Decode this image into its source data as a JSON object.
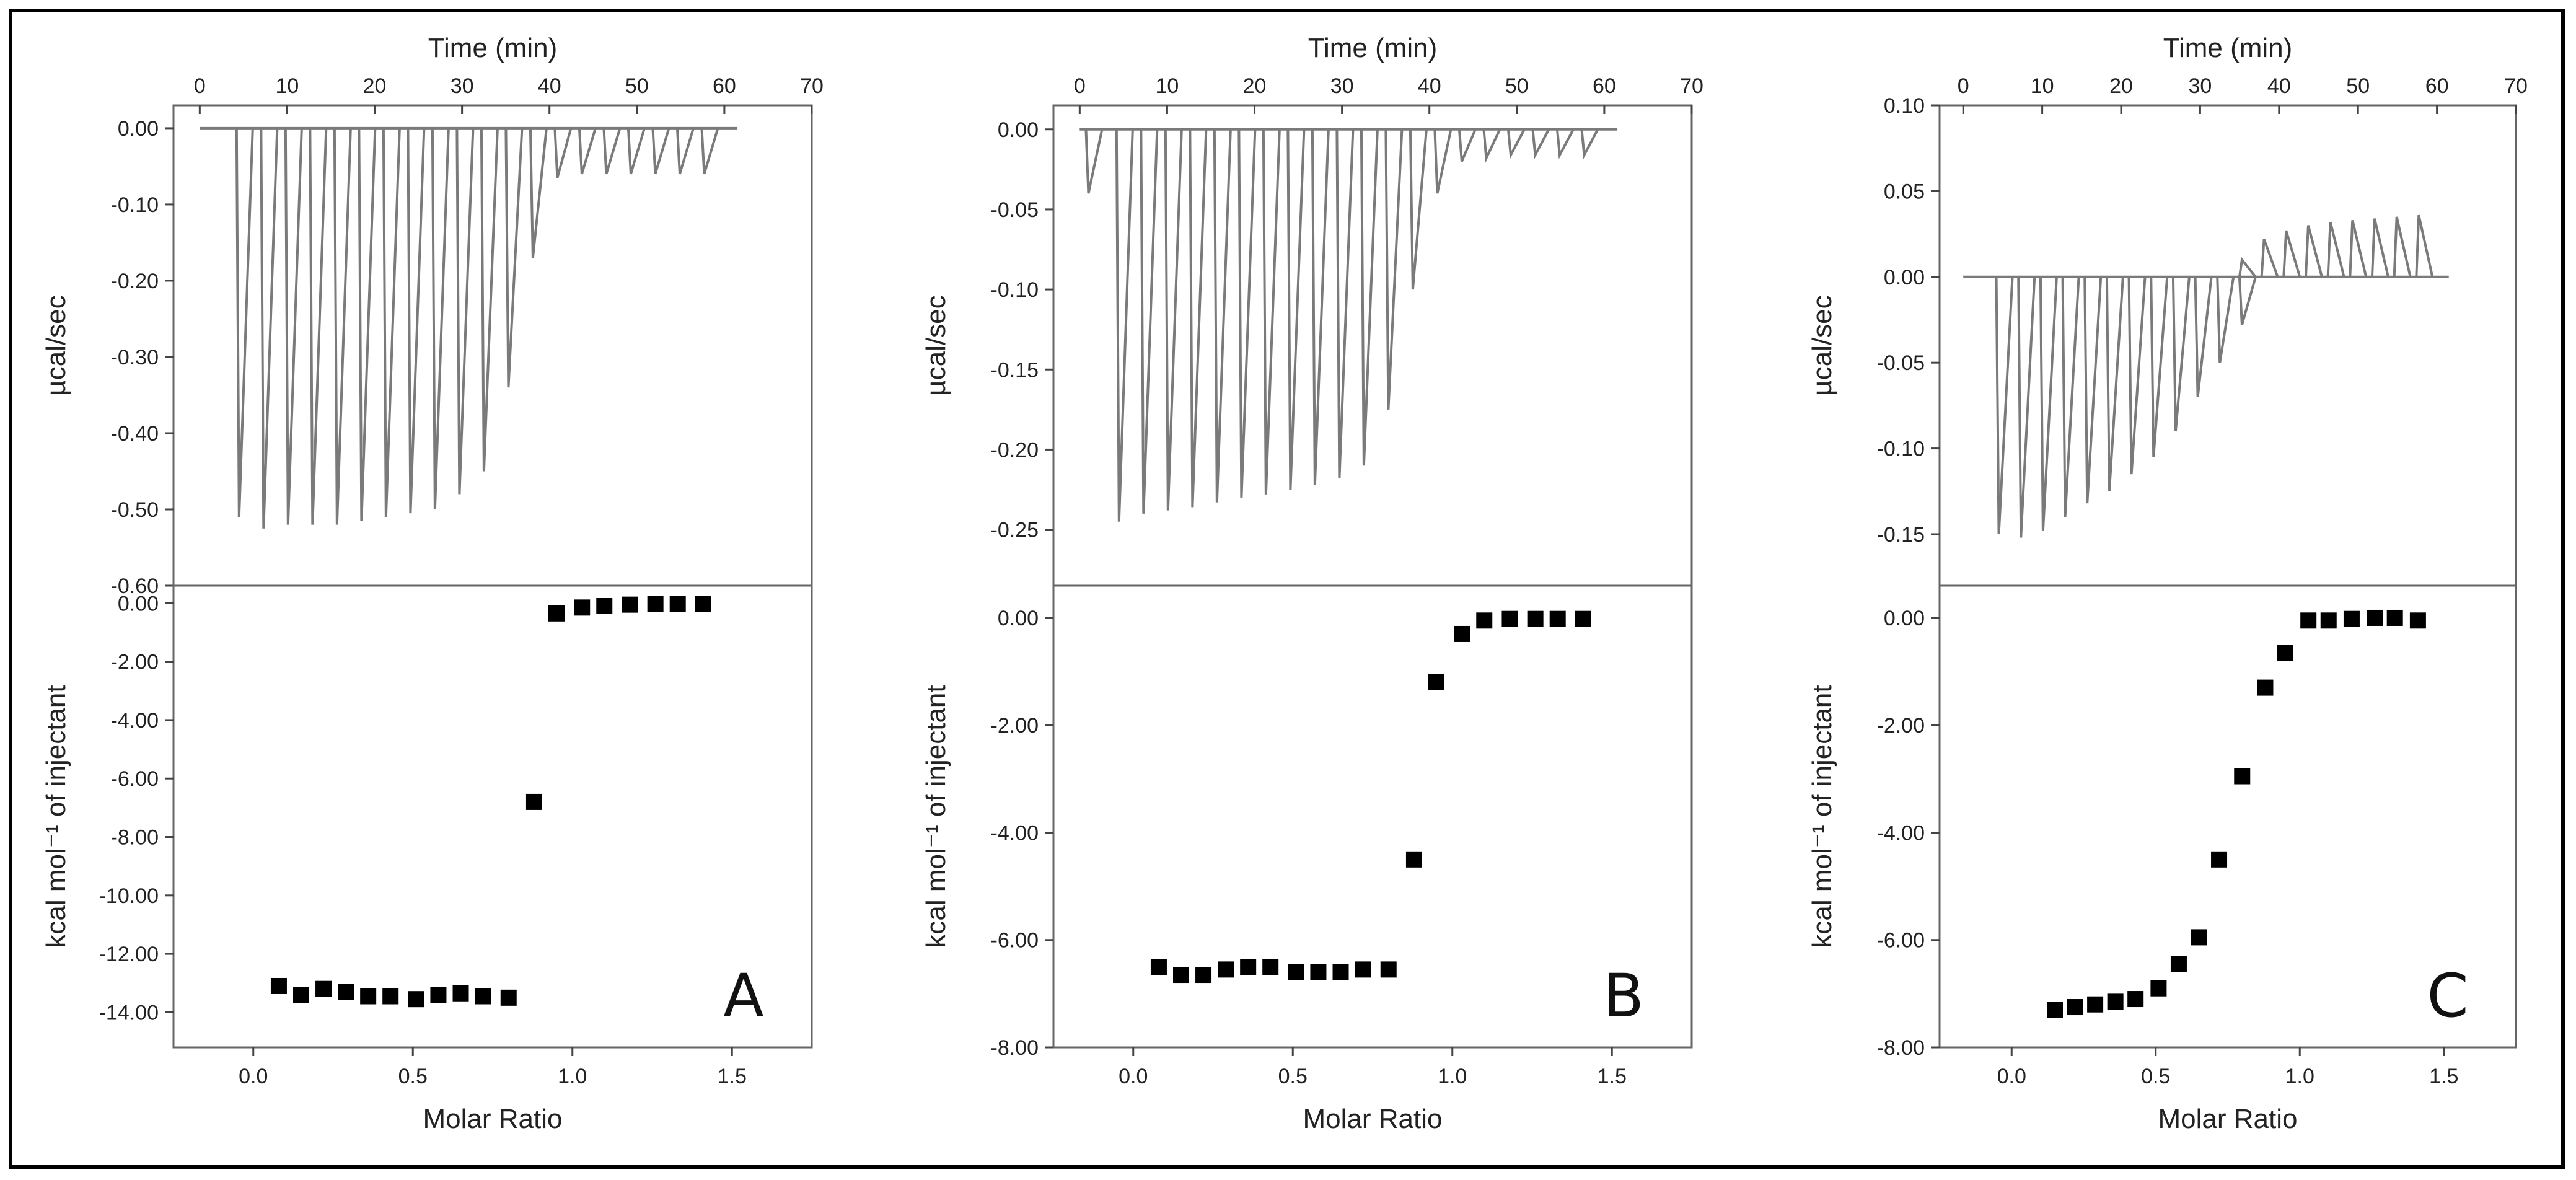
{
  "panels": [
    {
      "letter": "A",
      "top": {
        "xlabel": "Time (min)",
        "xticks": [
          0,
          10,
          20,
          30,
          40,
          50,
          60,
          70
        ],
        "xrange": [
          -3,
          70
        ],
        "ylabel": "µcal/sec",
        "yticks": [
          0.0,
          -0.1,
          -0.2,
          -0.3,
          -0.4,
          -0.5,
          -0.6
        ],
        "yticklabels": [
          "0.00",
          "-0.10",
          "-0.20",
          "-0.30",
          "-0.40",
          "-0.50",
          "-0.60"
        ],
        "yrange": [
          -0.6,
          0.03
        ],
        "peaks": [
          [
            4.5,
            -0.51
          ],
          [
            7.3,
            -0.525
          ],
          [
            10.1,
            -0.52
          ],
          [
            12.9,
            -0.52
          ],
          [
            15.7,
            -0.52
          ],
          [
            18.5,
            -0.515
          ],
          [
            21.3,
            -0.51
          ],
          [
            24.1,
            -0.505
          ],
          [
            26.9,
            -0.5
          ],
          [
            29.7,
            -0.48
          ],
          [
            32.5,
            -0.45
          ],
          [
            35.3,
            -0.34
          ],
          [
            38.1,
            -0.17
          ],
          [
            40.9,
            -0.065
          ],
          [
            43.7,
            -0.06
          ],
          [
            46.5,
            -0.06
          ],
          [
            49.3,
            -0.06
          ],
          [
            52.1,
            -0.06
          ],
          [
            54.9,
            -0.06
          ],
          [
            57.7,
            -0.06
          ]
        ],
        "trace_end": 61.5
      },
      "bottom": {
        "xlabel": "Molar Ratio",
        "xticks": [
          0.0,
          0.5,
          1.0,
          1.5
        ],
        "xticklabels": [
          "0.0",
          "0.5",
          "1.0",
          "1.5"
        ],
        "xrange": [
          -0.25,
          1.75
        ],
        "ylabel": "kcal mol⁻¹ of injectant",
        "yticks": [
          0,
          -2,
          -4,
          -6,
          -8,
          -10,
          -12,
          -14
        ],
        "yticklabels": [
          "0.00",
          "-2.00",
          "-4.00",
          "-6.00",
          "-8.00",
          "-10.00",
          "-12.00",
          "-14.00"
        ],
        "yrange": [
          -15.2,
          0.6
        ],
        "points": [
          [
            0.08,
            -13.1
          ],
          [
            0.15,
            -13.4
          ],
          [
            0.22,
            -13.2
          ],
          [
            0.29,
            -13.3
          ],
          [
            0.36,
            -13.45
          ],
          [
            0.43,
            -13.45
          ],
          [
            0.51,
            -13.55
          ],
          [
            0.58,
            -13.4
          ],
          [
            0.65,
            -13.35
          ],
          [
            0.72,
            -13.45
          ],
          [
            0.8,
            -13.5
          ],
          [
            0.88,
            -6.8
          ],
          [
            0.95,
            -0.35
          ],
          [
            1.03,
            -0.15
          ],
          [
            1.1,
            -0.1
          ],
          [
            1.18,
            -0.05
          ],
          [
            1.26,
            -0.03
          ],
          [
            1.33,
            -0.02
          ],
          [
            1.41,
            -0.02
          ]
        ]
      }
    },
    {
      "letter": "B",
      "top": {
        "xlabel": "Time (min)",
        "xticks": [
          0,
          10,
          20,
          30,
          40,
          50,
          60,
          70
        ],
        "xrange": [
          -3,
          70
        ],
        "ylabel": "µcal/sec",
        "yticks": [
          0.0,
          -0.05,
          -0.1,
          -0.15,
          -0.2,
          -0.25
        ],
        "yticklabels": [
          "0.00",
          "-0.05",
          "-0.10",
          "-0.15",
          "-0.20",
          "-0.25"
        ],
        "yrange": [
          -0.285,
          0.015
        ],
        "peaks": [
          [
            1.0,
            -0.04
          ],
          [
            4.5,
            -0.245
          ],
          [
            7.3,
            -0.24
          ],
          [
            10.1,
            -0.238
          ],
          [
            12.9,
            -0.236
          ],
          [
            15.7,
            -0.233
          ],
          [
            18.5,
            -0.23
          ],
          [
            21.3,
            -0.228
          ],
          [
            24.1,
            -0.225
          ],
          [
            26.9,
            -0.222
          ],
          [
            29.7,
            -0.218
          ],
          [
            32.5,
            -0.21
          ],
          [
            35.3,
            -0.175
          ],
          [
            38.1,
            -0.1
          ],
          [
            40.9,
            -0.04
          ],
          [
            43.7,
            -0.02
          ],
          [
            46.5,
            -0.018
          ],
          [
            49.3,
            -0.016
          ],
          [
            52.1,
            -0.016
          ],
          [
            54.9,
            -0.016
          ],
          [
            57.7,
            -0.016
          ]
        ],
        "trace_end": 61.5
      },
      "bottom": {
        "xlabel": "Molar Ratio",
        "xticks": [
          0.0,
          0.5,
          1.0,
          1.5
        ],
        "xticklabels": [
          "0.0",
          "0.5",
          "1.0",
          "1.5"
        ],
        "xrange": [
          -0.25,
          1.75
        ],
        "ylabel": "kcal mol⁻¹ of injectant",
        "yticks": [
          0,
          -2,
          -4,
          -6,
          -8
        ],
        "yticklabels": [
          "0.00",
          "-2.00",
          "-4.00",
          "-6.00",
          "-8.00"
        ],
        "yrange": [
          -8.0,
          0.6
        ],
        "points": [
          [
            0.08,
            -6.5
          ],
          [
            0.15,
            -6.65
          ],
          [
            0.22,
            -6.65
          ],
          [
            0.29,
            -6.55
          ],
          [
            0.36,
            -6.5
          ],
          [
            0.43,
            -6.5
          ],
          [
            0.51,
            -6.6
          ],
          [
            0.58,
            -6.6
          ],
          [
            0.65,
            -6.6
          ],
          [
            0.72,
            -6.55
          ],
          [
            0.8,
            -6.55
          ],
          [
            0.88,
            -4.5
          ],
          [
            0.95,
            -1.2
          ],
          [
            1.03,
            -0.3
          ],
          [
            1.1,
            -0.05
          ],
          [
            1.18,
            -0.02
          ],
          [
            1.26,
            -0.02
          ],
          [
            1.33,
            -0.02
          ],
          [
            1.41,
            -0.02
          ]
        ]
      }
    },
    {
      "letter": "C",
      "top": {
        "xlabel": "Time (min)",
        "xticks": [
          0,
          10,
          20,
          30,
          40,
          50,
          60,
          70
        ],
        "xrange": [
          -3,
          70
        ],
        "ylabel": "µcal/sec",
        "yticks": [
          0.1,
          0.05,
          0.0,
          -0.05,
          -0.1,
          -0.15
        ],
        "yticklabels": [
          "0.10",
          "0.05",
          "0.00",
          "-0.05",
          "-0.10",
          "-0.15"
        ],
        "yrange": [
          -0.18,
          0.1
        ],
        "peaks": [
          [
            4.5,
            -0.15
          ],
          [
            7.3,
            -0.152
          ],
          [
            10.1,
            -0.148
          ],
          [
            12.9,
            -0.14
          ],
          [
            15.7,
            -0.132
          ],
          [
            18.5,
            -0.125
          ],
          [
            21.3,
            -0.115
          ],
          [
            24.1,
            -0.105
          ],
          [
            26.9,
            -0.09
          ],
          [
            29.7,
            -0.07
          ],
          [
            32.5,
            -0.05
          ],
          [
            35.3,
            -0.028
          ]
        ],
        "up_peaks": [
          [
            35.3,
            0.01
          ],
          [
            38.1,
            0.022
          ],
          [
            40.9,
            0.027
          ],
          [
            43.7,
            0.03
          ],
          [
            46.5,
            0.032
          ],
          [
            49.3,
            0.033
          ],
          [
            52.1,
            0.034
          ],
          [
            54.9,
            0.035
          ],
          [
            57.7,
            0.036
          ]
        ],
        "trace_end": 61.5
      },
      "bottom": {
        "xlabel": "Molar Ratio",
        "xticks": [
          0.0,
          0.5,
          1.0,
          1.5
        ],
        "xticklabels": [
          "0.0",
          "0.5",
          "1.0",
          "1.5"
        ],
        "xrange": [
          -0.25,
          1.75
        ],
        "ylabel": "kcal mol⁻¹ of injectant",
        "yticks": [
          0,
          -2,
          -4,
          -6,
          -8
        ],
        "yticklabels": [
          "0.00",
          "-2.00",
          "-4.00",
          "-6.00",
          "-8.00"
        ],
        "yrange": [
          -8.0,
          0.6
        ],
        "points": [
          [
            0.15,
            -7.3
          ],
          [
            0.22,
            -7.25
          ],
          [
            0.29,
            -7.2
          ],
          [
            0.36,
            -7.15
          ],
          [
            0.43,
            -7.1
          ],
          [
            0.51,
            -6.9
          ],
          [
            0.58,
            -6.45
          ],
          [
            0.65,
            -5.95
          ],
          [
            0.72,
            -4.5
          ],
          [
            0.8,
            -2.95
          ],
          [
            0.88,
            -1.3
          ],
          [
            0.95,
            -0.65
          ],
          [
            1.03,
            -0.05
          ],
          [
            1.1,
            -0.05
          ],
          [
            1.18,
            -0.02
          ],
          [
            1.26,
            0.0
          ],
          [
            1.33,
            0.0
          ],
          [
            1.41,
            -0.05
          ]
        ]
      }
    }
  ],
  "chart_data": [
    {
      "type": "line",
      "title": "",
      "xlabel": "Time (min)",
      "ylabel": "µcal/sec",
      "xlim": [
        -3,
        70
      ],
      "ylim": [
        -0.6,
        0.03
      ],
      "series": [
        {
          "values": "see panels.0.top.peaks (minimum of each injection spike)"
        }
      ]
    },
    {
      "type": "scatter",
      "title": "",
      "xlabel": "Molar Ratio",
      "ylabel": "kcal mol⁻¹ of injectant",
      "xlim": [
        -0.25,
        1.75
      ],
      "ylim": [
        -15.2,
        0.6
      ],
      "series": [
        {
          "values": "see panels.0.bottom.points"
        }
      ]
    },
    {
      "type": "line",
      "title": "",
      "xlabel": "Time (min)",
      "ylabel": "µcal/sec",
      "xlim": [
        -3,
        70
      ],
      "ylim": [
        -0.285,
        0.015
      ],
      "series": [
        {
          "values": "see panels.1.top.peaks"
        }
      ]
    },
    {
      "type": "scatter",
      "title": "",
      "xlabel": "Molar Ratio",
      "ylabel": "kcal mol⁻¹ of injectant",
      "xlim": [
        -0.25,
        1.75
      ],
      "ylim": [
        -8.0,
        0.6
      ],
      "series": [
        {
          "values": "see panels.1.bottom.points"
        }
      ]
    },
    {
      "type": "line",
      "title": "",
      "xlabel": "Time (min)",
      "ylabel": "µcal/sec",
      "xlim": [
        -3,
        70
      ],
      "ylim": [
        -0.18,
        0.1
      ],
      "series": [
        {
          "values": "see panels.2.top.peaks and panels.2.top.up_peaks"
        }
      ]
    },
    {
      "type": "scatter",
      "title": "",
      "xlabel": "Molar Ratio",
      "ylabel": "kcal mol⁻¹ of injectant",
      "xlim": [
        -0.25,
        1.75
      ],
      "ylim": [
        -8.0,
        0.6
      ],
      "series": [
        {
          "values": "see panels.2.bottom.points"
        }
      ]
    }
  ]
}
